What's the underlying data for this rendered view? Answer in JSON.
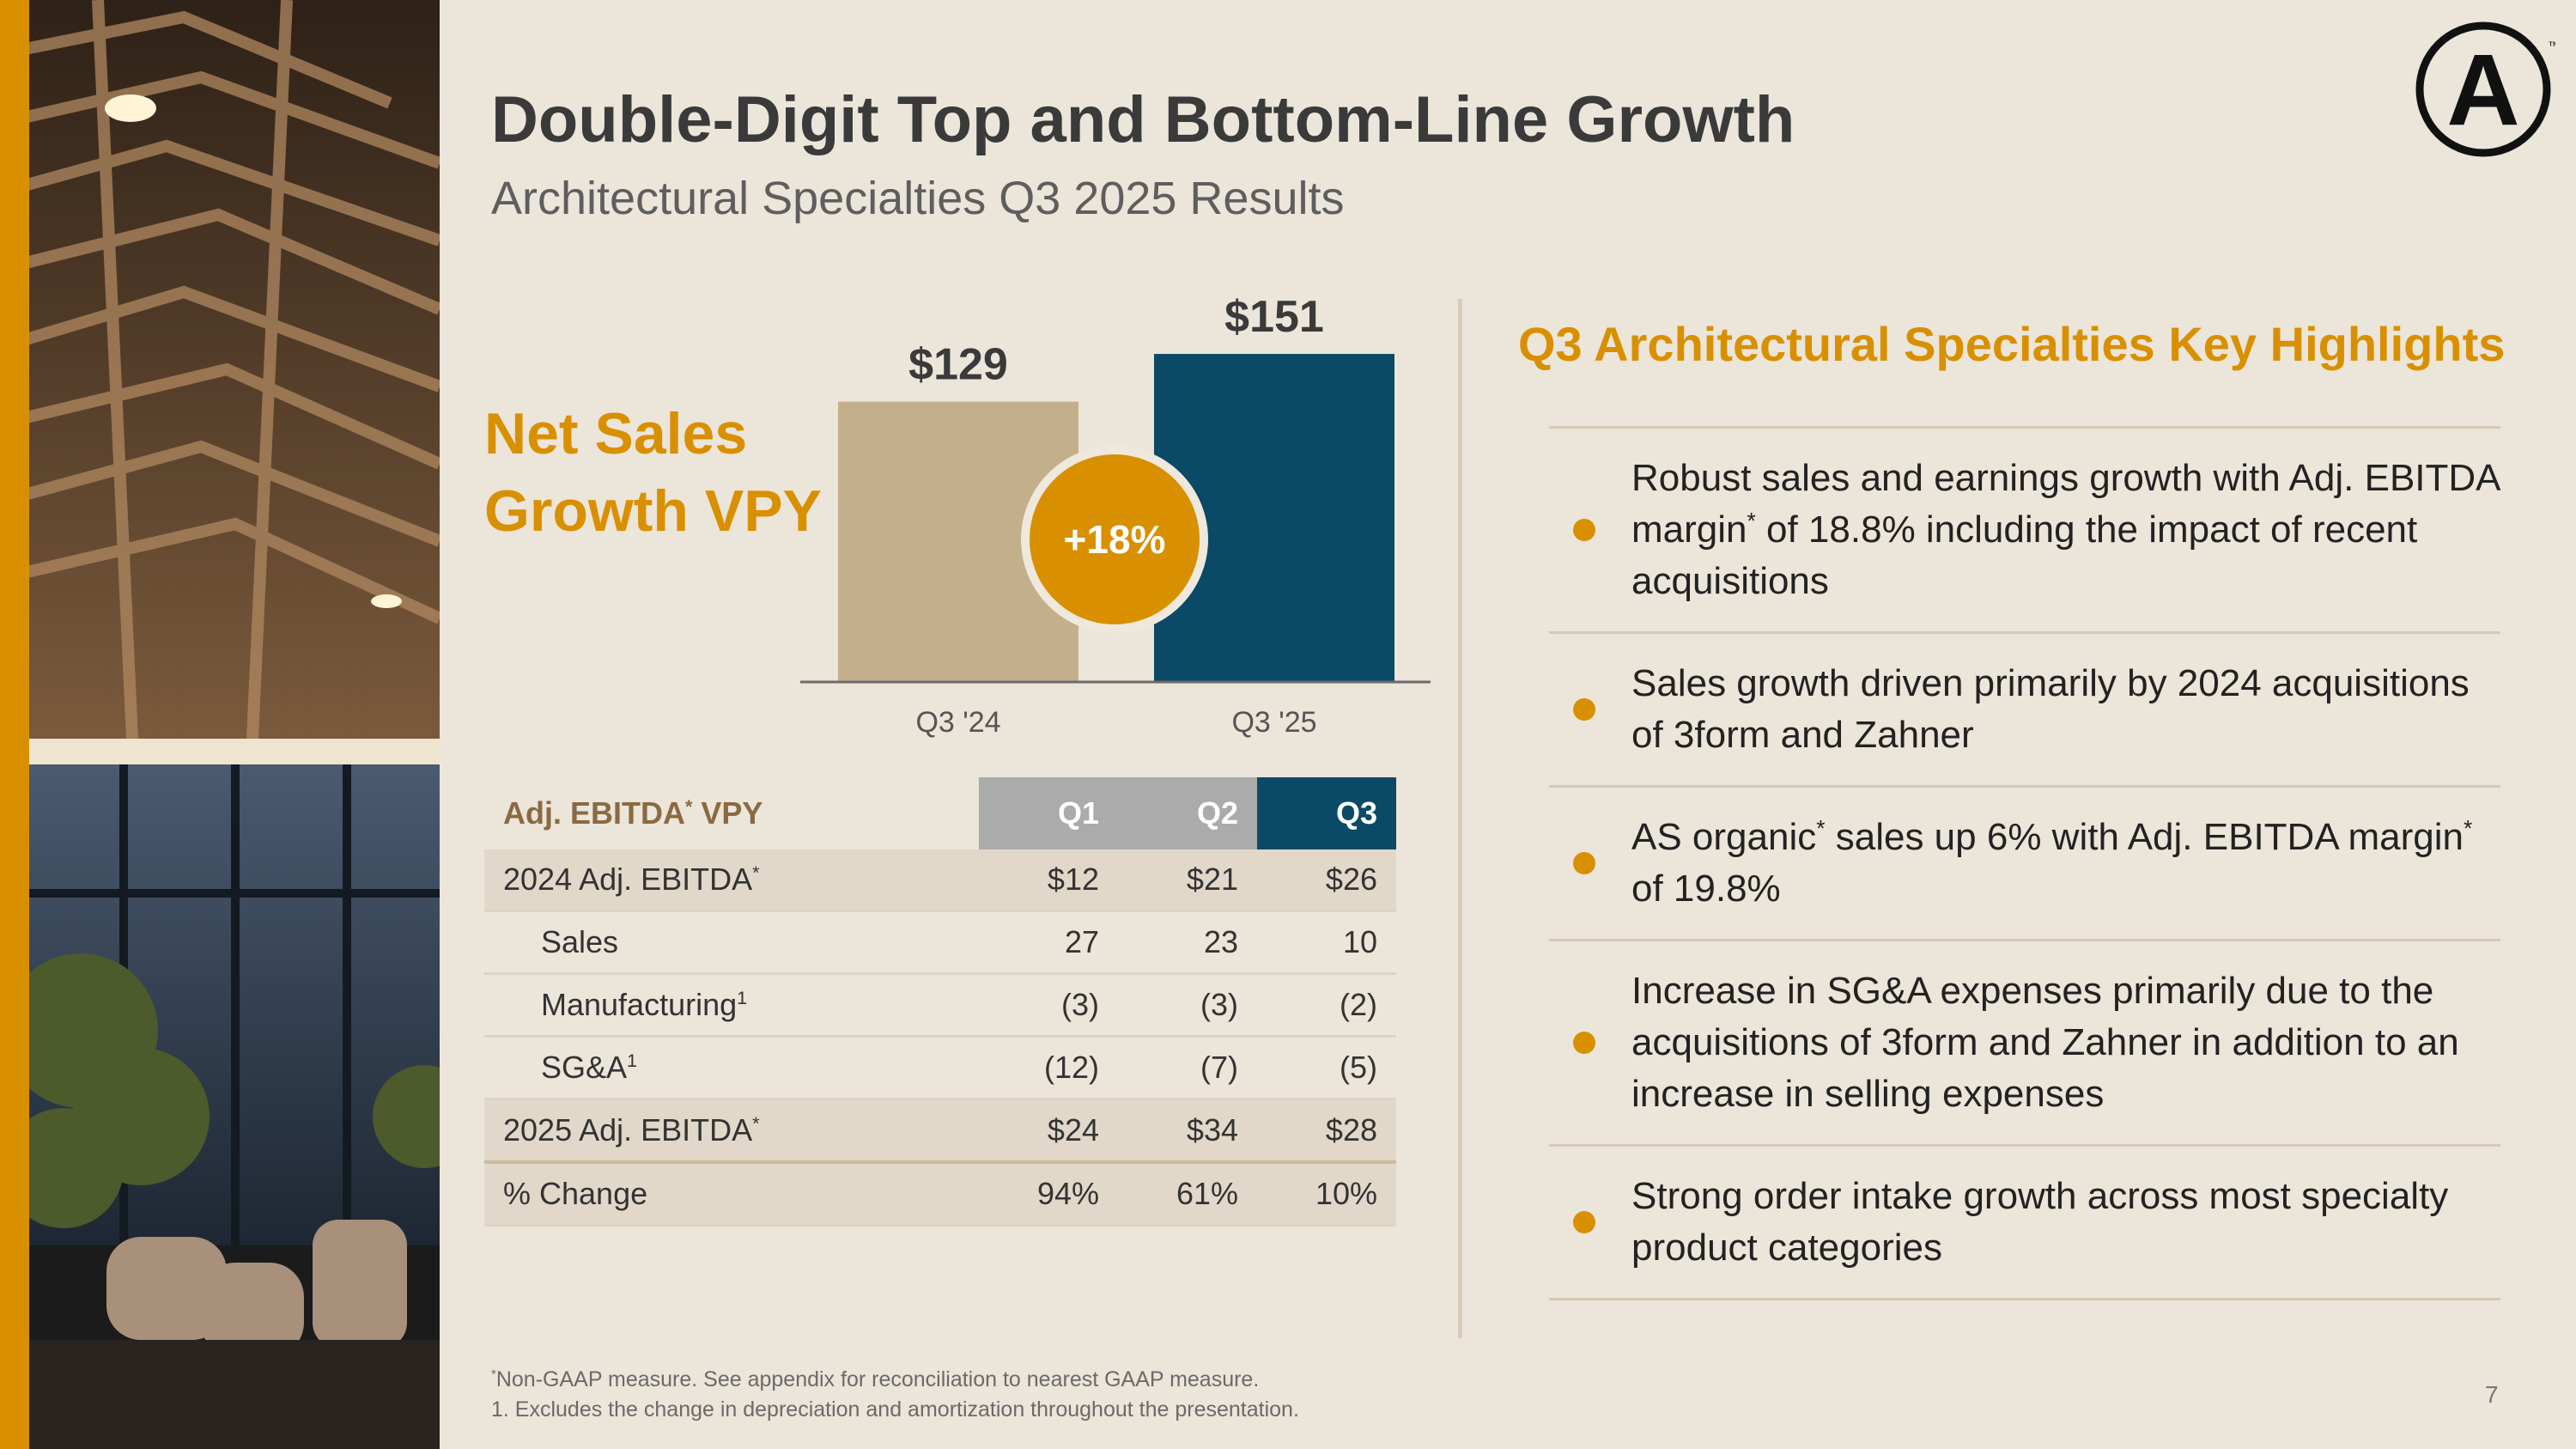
{
  "title": "Double-Digit Top and Bottom-Line Growth",
  "subtitle": "Architectural Specialties Q3 2025 Results",
  "logo": {
    "letter": "A",
    "tm": "™",
    "color": "#111111"
  },
  "net_sales_label": [
    "Net Sales",
    "Growth VPY"
  ],
  "chart_data": {
    "type": "bar",
    "title": "Net Sales Growth VPY",
    "categories": [
      "Q3 '24",
      "Q3 '25"
    ],
    "values": [
      129,
      151
    ],
    "value_labels": [
      "$129",
      "$151"
    ],
    "colors": [
      "#c4af8c",
      "#0b4a66"
    ],
    "growth_badge": "+18%",
    "ylim": [
      0,
      170
    ]
  },
  "table": {
    "header": {
      "label": "Adj. EBITDA",
      "label_sup": "*",
      "label_suffix": " VPY",
      "q1": "Q1",
      "q2": "Q2",
      "q3": "Q3"
    },
    "rows": [
      {
        "label": "2024 Adj. EBITDA",
        "sup": "*",
        "q1": "$12",
        "q2": "$21",
        "q3": "$26"
      },
      {
        "label": "Sales",
        "sup": "",
        "q1": "27",
        "q2": "23",
        "q3": "10"
      },
      {
        "label": "Manufacturing",
        "sup": "1",
        "q1": "(3)",
        "q2": "(3)",
        "q3": "(2)"
      },
      {
        "label": "SG&A",
        "sup": "1",
        "q1": "(12)",
        "q2": "(7)",
        "q3": "(5)"
      },
      {
        "label": "2025 Adj. EBITDA",
        "sup": "*",
        "q1": "$24",
        "q2": "$34",
        "q3": "$28"
      },
      {
        "label": "% Change",
        "sup": "",
        "q1": "94%",
        "q2": "61%",
        "q3": "10%"
      }
    ]
  },
  "highlights": {
    "title": "Q3 Architectural Specialties Key Highlights",
    "items": [
      {
        "a": "Robust sales and earnings growth with Adj. EBITDA margin",
        "sup": "*",
        "b": " of 18.8% including the impact of recent acquisitions"
      },
      {
        "a": "Sales growth driven primarily by 2024 acquisitions of 3form and Zahner",
        "sup": "",
        "b": ""
      },
      {
        "a": "AS organic",
        "sup": "*",
        "b": " sales up 6% with Adj. EBITDA margin",
        "sup2": "*",
        "c": " of 19.8%"
      },
      {
        "a": "Increase in SG&A expenses primarily due to the acquisitions of 3form and Zahner in addition to an increase in selling expenses",
        "sup": "",
        "b": ""
      },
      {
        "a": "Strong order intake growth across most specialty product categories",
        "sup": "",
        "b": ""
      }
    ]
  },
  "footnotes": {
    "f1_sup": "*",
    "f1": "Non-GAAP measure. See appendix for reconciliation to nearest GAAP measure.",
    "f2": "1. Excludes the change in depreciation and amortization throughout the presentation."
  },
  "page_number": "7"
}
